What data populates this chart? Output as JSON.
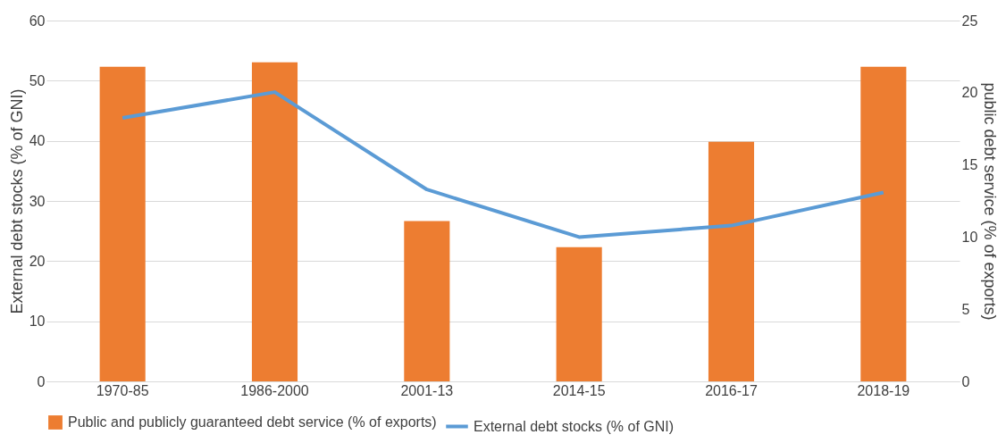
{
  "chart_data": {
    "type": "bar",
    "categories": [
      "1970-85",
      "1986-2000",
      "2001-13",
      "2014-15",
      "2016-17",
      "2018-19"
    ],
    "ylabel": "External debt stocks (% of GNI)",
    "y2label": "public debt service (% of exports)",
    "ylim": [
      0,
      60
    ],
    "yticks": [
      0,
      10,
      20,
      30,
      40,
      50,
      60
    ],
    "y2lim": [
      0,
      25
    ],
    "y2ticks": [
      0,
      5,
      10,
      15,
      20,
      25
    ],
    "series": [
      {
        "name": "Public and publicly guaranteed debt service (% of exports)",
        "axis": "y2",
        "color": "#ed7d31",
        "values": [
          21.8,
          22.1,
          11.1,
          9.3,
          16.6,
          21.8
        ]
      },
      {
        "name": "External debt stocks (% of GNI)",
        "type": "line",
        "color": "#5b9bd5",
        "values": [
          43.8,
          48.1,
          31.9,
          24.0,
          25.9,
          31.4
        ]
      }
    ],
    "grid": "y",
    "legend": "bottom"
  }
}
